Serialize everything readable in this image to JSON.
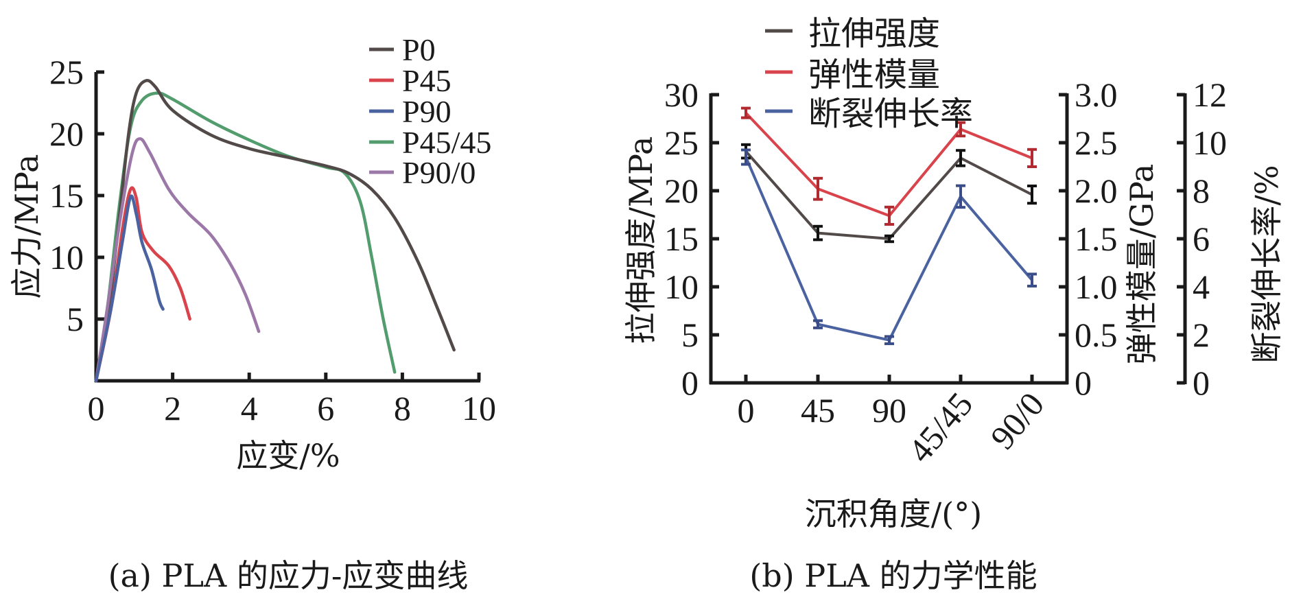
{
  "chart_data": [
    {
      "id": "a",
      "type": "line",
      "caption": "(a) PLA 的应力-应变曲线",
      "xlabel": "应变/%",
      "ylabel": "应力/MPa",
      "xlim": [
        0,
        10
      ],
      "ylim": [
        0,
        25
      ],
      "xticks": [
        0,
        2,
        4,
        6,
        8,
        10
      ],
      "yticks": [
        5,
        10,
        15,
        20,
        25
      ],
      "xtick_labels": [
        "0",
        "2",
        "4",
        "6",
        "8",
        "10"
      ],
      "ytick_labels": [
        "5",
        "10",
        "15",
        "20",
        "25"
      ],
      "grid": false,
      "legend_position": "top-right",
      "series": [
        {
          "name": "P0",
          "color": "#524a48",
          "points": [
            [
              0,
              0
            ],
            [
              0.3,
              5
            ],
            [
              0.6,
              13
            ],
            [
              0.85,
              20
            ],
            [
              1.05,
              23.3
            ],
            [
              1.3,
              24.3
            ],
            [
              1.55,
              23.8
            ],
            [
              2,
              21.9
            ],
            [
              3,
              19.9
            ],
            [
              4,
              18.8
            ],
            [
              5,
              18.1
            ],
            [
              6,
              17.4
            ],
            [
              6.6,
              16.8
            ],
            [
              7.2,
              15.5
            ],
            [
              7.8,
              13.2
            ],
            [
              8.4,
              9.7
            ],
            [
              8.9,
              6
            ],
            [
              9.35,
              2.5
            ]
          ]
        },
        {
          "name": "P45",
          "color": "#d9434b",
          "points": [
            [
              0,
              0
            ],
            [
              0.4,
              6
            ],
            [
              0.7,
              12.5
            ],
            [
              0.9,
              15.5
            ],
            [
              1.05,
              14.8
            ],
            [
              1.2,
              12
            ],
            [
              1.5,
              10.5
            ],
            [
              1.9,
              9.3
            ],
            [
              2.2,
              7.5
            ],
            [
              2.45,
              5
            ]
          ]
        },
        {
          "name": "P90",
          "color": "#4a62a0",
          "points": [
            [
              0,
              0
            ],
            [
              0.4,
              6
            ],
            [
              0.7,
              11.5
            ],
            [
              0.9,
              14.9
            ],
            [
              1.05,
              13.5
            ],
            [
              1.2,
              11.2
            ],
            [
              1.45,
              9
            ],
            [
              1.65,
              6.5
            ],
            [
              1.75,
              5.8
            ]
          ]
        },
        {
          "name": "P45/45",
          "color": "#529c6e",
          "points": [
            [
              0,
              0
            ],
            [
              0.3,
              6
            ],
            [
              0.6,
              14
            ],
            [
              0.9,
              20.5
            ],
            [
              1.2,
              22.7
            ],
            [
              1.6,
              23.3
            ],
            [
              2,
              22.8
            ],
            [
              3,
              21
            ],
            [
              4,
              19.5
            ],
            [
              5,
              18.2
            ],
            [
              6,
              17.3
            ],
            [
              6.5,
              16.8
            ],
            [
              6.9,
              14.5
            ],
            [
              7.2,
              10
            ],
            [
              7.5,
              5
            ],
            [
              7.8,
              0.7
            ]
          ]
        },
        {
          "name": "P90/0",
          "color": "#9b78a8",
          "points": [
            [
              0,
              0
            ],
            [
              0.3,
              6
            ],
            [
              0.65,
              13.5
            ],
            [
              0.95,
              18.5
            ],
            [
              1.15,
              19.6
            ],
            [
              1.4,
              18.5
            ],
            [
              1.9,
              15.5
            ],
            [
              2.4,
              13.6
            ],
            [
              3,
              11.8
            ],
            [
              3.5,
              9.5
            ],
            [
              3.9,
              7
            ],
            [
              4.25,
              4
            ]
          ]
        }
      ]
    },
    {
      "id": "b",
      "type": "line",
      "caption": "(b) PLA 的力学性能",
      "xlabel": "沉积角度/(°)",
      "categories": [
        "0",
        "45",
        "90",
        "45/45",
        "90/0"
      ],
      "grid": false,
      "legend_position": "top",
      "axes": [
        {
          "label": "拉伸强度/MPa",
          "side": "left",
          "ylim": [
            0,
            30
          ],
          "ticks": [
            "0",
            "5",
            "10",
            "15",
            "20",
            "25",
            "30"
          ],
          "tick_values": [
            0,
            5,
            10,
            15,
            20,
            25,
            30
          ]
        },
        {
          "label": "弹性模量/GPa",
          "side": "right",
          "ylim": [
            0,
            3.0
          ],
          "ticks": [
            "0",
            "0.5",
            "1.0",
            "1.5",
            "2.0",
            "2.5",
            "3.0"
          ],
          "tick_values": [
            0,
            0.5,
            1.0,
            1.5,
            2.0,
            2.5,
            3.0
          ]
        },
        {
          "label": "断裂伸长率/%",
          "side": "right-outer",
          "ylim": [
            0,
            12
          ],
          "ticks": [
            "0",
            "2",
            "4",
            "6",
            "8",
            "10",
            "12"
          ],
          "tick_values": [
            0,
            2,
            4,
            6,
            8,
            10,
            12
          ]
        }
      ],
      "series": [
        {
          "name": "拉伸强度",
          "axis": 0,
          "color": "#514a48",
          "err_color": "#111111",
          "values": [
            24.1,
            15.6,
            15.0,
            23.4,
            19.6
          ],
          "errors": [
            0.7,
            0.7,
            0.3,
            0.8,
            0.9
          ]
        },
        {
          "name": "弹性模量",
          "axis": 1,
          "color": "#d9434b",
          "err_color": "#b02a30",
          "values": [
            2.81,
            2.02,
            1.74,
            2.64,
            2.34
          ],
          "errors": [
            0.05,
            0.11,
            0.09,
            0.07,
            0.09
          ]
        },
        {
          "name": "断裂伸长率",
          "axis": 2,
          "color": "#4a62a0",
          "err_color": "#3a4d88",
          "values": [
            9.4,
            2.44,
            1.78,
            7.76,
            4.28
          ],
          "errors": [
            0.3,
            0.15,
            0.15,
            0.45,
            0.25
          ]
        }
      ]
    }
  ]
}
